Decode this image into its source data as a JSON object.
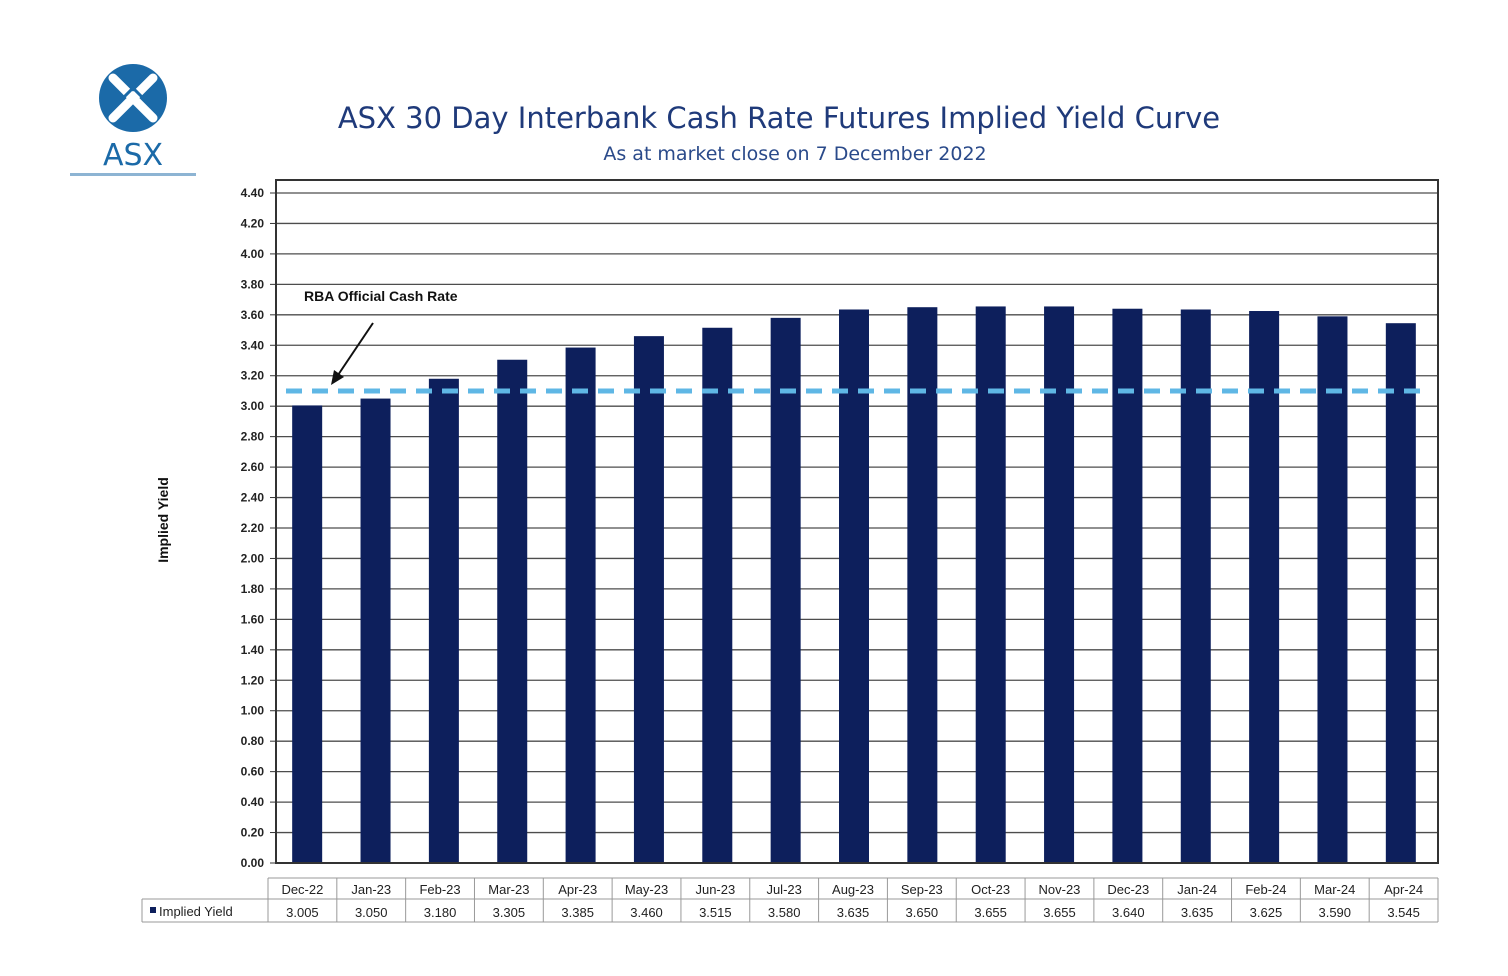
{
  "logo": {
    "text": "ASX",
    "icon": "asx-logo-icon",
    "color": "#1b6aa8"
  },
  "colors": {
    "bar": "#0d1f5c",
    "cash_rate_line": "#5fb7e5",
    "grid": "#4d4d4d",
    "title": "#1f3a7a"
  },
  "chart_data": {
    "type": "bar",
    "title": "ASX 30 Day Interbank Cash Rate Futures Implied Yield Curve",
    "subtitle": "As at market close on 7 December 2022",
    "ylabel": "Implied Yield",
    "xlabel": "",
    "ylim": [
      0,
      4.4
    ],
    "ytick_step": 0.2,
    "grid": true,
    "categories": [
      "Dec-22",
      "Jan-23",
      "Feb-23",
      "Mar-23",
      "Apr-23",
      "May-23",
      "Jun-23",
      "Jul-23",
      "Aug-23",
      "Sep-23",
      "Oct-23",
      "Nov-23",
      "Dec-23",
      "Jan-24",
      "Feb-24",
      "Mar-24",
      "Apr-24"
    ],
    "series": [
      {
        "name": "Implied Yield",
        "values": [
          3.005,
          3.05,
          3.18,
          3.305,
          3.385,
          3.46,
          3.515,
          3.58,
          3.635,
          3.65,
          3.655,
          3.655,
          3.64,
          3.635,
          3.625,
          3.59,
          3.545
        ],
        "value_labels": [
          "3.005",
          "3.050",
          "3.180",
          "3.305",
          "3.385",
          "3.460",
          "3.515",
          "3.580",
          "3.635",
          "3.650",
          "3.655",
          "3.655",
          "3.640",
          "3.635",
          "3.625",
          "3.590",
          "3.545"
        ]
      }
    ],
    "reference_line": {
      "label": "RBA Official Cash Rate",
      "value": 3.1,
      "style": "dashed"
    },
    "data_table": true
  }
}
